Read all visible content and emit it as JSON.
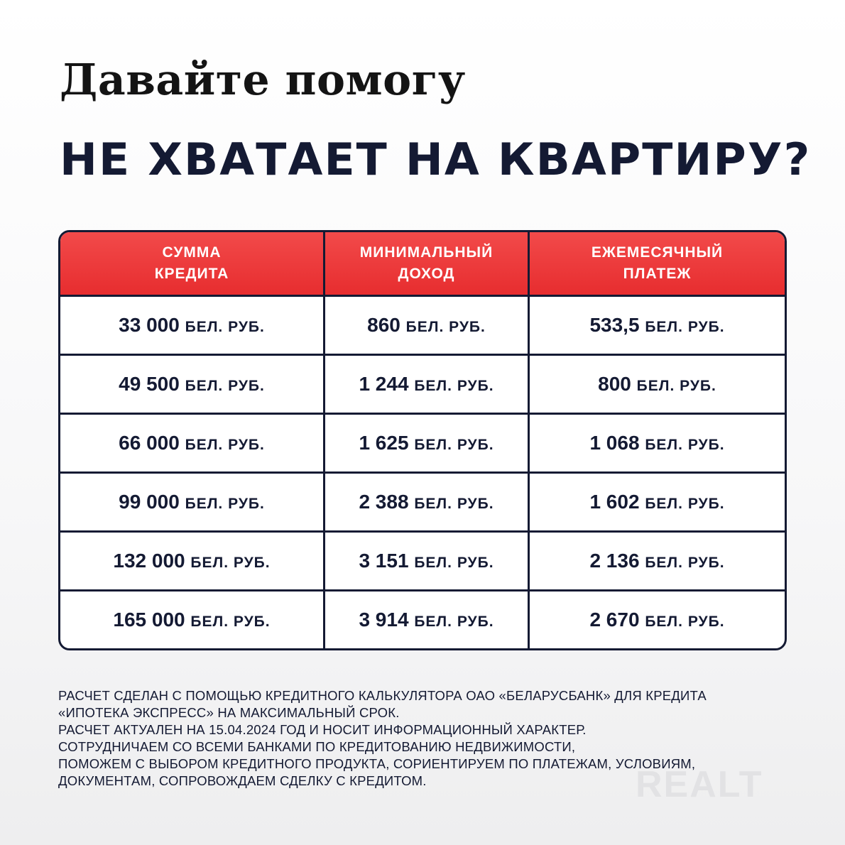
{
  "title": "Давайте помогу",
  "headline": "НЕ ХВАТАЕТ НА КВАРТИРУ?",
  "table": {
    "headers": [
      [
        "СУММА",
        "КРЕДИТА"
      ],
      [
        "МИНИМАЛЬНЫЙ",
        "ДОХОД"
      ],
      [
        "ЕЖЕМЕСЯЧНЫЙ",
        "ПЛАТЕЖ"
      ]
    ],
    "unit": "БЕЛ. РУБ.",
    "rows": [
      [
        "33 000",
        "860",
        "533,5"
      ],
      [
        "49 500",
        "1 244",
        "800"
      ],
      [
        "66 000",
        "1 625",
        "1 068"
      ],
      [
        "99 000",
        "2 388",
        "1 602"
      ],
      [
        "132 000",
        "3 151",
        "2 136"
      ],
      [
        "165 000",
        "3 914",
        "2 670"
      ]
    ]
  },
  "footer": [
    "РАСЧЕТ СДЕЛАН С ПОМОЩЬЮ КРЕДИТНОГО КАЛЬКУЛЯТОРА ОАО «БЕЛАРУСБАНК» ДЛЯ КРЕДИТА",
    "«ИПОТЕКА ЭКСПРЕСС» НА МАКСИМАЛЬНЫЙ СРОК.",
    "РАСЧЕТ АКТУАЛЕН НА 15.04.2024 ГОД И НОСИТ ИНФОРМАЦИОННЫЙ ХАРАКТЕР.",
    "СОТРУДНИЧАЕМ СО ВСЕМИ БАНКАМИ ПО КРЕДИТОВАНИЮ НЕДВИЖИМОСТИ,",
    "ПОМОЖЕМ С ВЫБОРОМ КРЕДИТНОГО ПРОДУКТА, СОРИЕНТИРУЕМ ПО ПЛАТЕЖАМ, УСЛОВИЯМ,",
    "ДОКУМЕНТАМ, СОПРОВОЖДАЕМ СДЕЛКУ С КРЕДИТОМ."
  ],
  "watermark": "REALT",
  "colors": {
    "accent_red": "#e72d2f",
    "navy": "#141a33"
  }
}
